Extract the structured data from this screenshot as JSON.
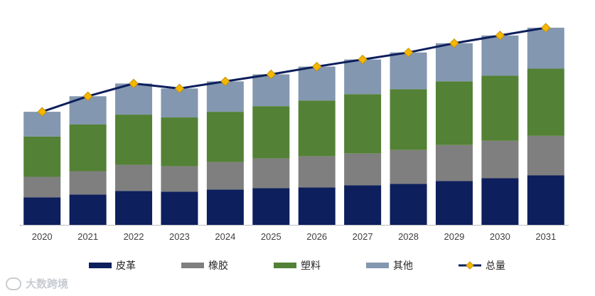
{
  "chart_data": {
    "type": "bar",
    "stacked": true,
    "categories": [
      "2020",
      "2021",
      "2022",
      "2023",
      "2024",
      "2025",
      "2026",
      "2027",
      "2028",
      "2029",
      "2030",
      "2031"
    ],
    "series": [
      {
        "name": "皮革",
        "color": "#0d1f5c",
        "values": [
          39,
          43,
          48,
          47,
          50,
          52,
          53,
          56,
          58,
          62,
          66,
          70
        ]
      },
      {
        "name": "橡胶",
        "color": "#7f7f7f",
        "values": [
          29,
          33,
          37,
          36,
          39,
          42,
          44,
          45,
          48,
          51,
          53,
          56
        ]
      },
      {
        "name": "塑料",
        "color": "#538135",
        "values": [
          57,
          66,
          71,
          69,
          71,
          74,
          79,
          84,
          86,
          90,
          92,
          95
        ]
      },
      {
        "name": "其他",
        "color": "#8497b0",
        "values": [
          35,
          40,
          44,
          41,
          43,
          45,
          48,
          49,
          52,
          54,
          57,
          58
        ]
      }
    ],
    "line": {
      "name": "总量",
      "color": "#0d1f5c",
      "marker_color": "#f5b800",
      "values": [
        160,
        182,
        200,
        193,
        203,
        213,
        224,
        234,
        244,
        257,
        268,
        279
      ]
    },
    "ylim": [
      0,
      290
    ],
    "title": "",
    "xlabel": "",
    "ylabel": ""
  },
  "watermark": "大数跨境"
}
